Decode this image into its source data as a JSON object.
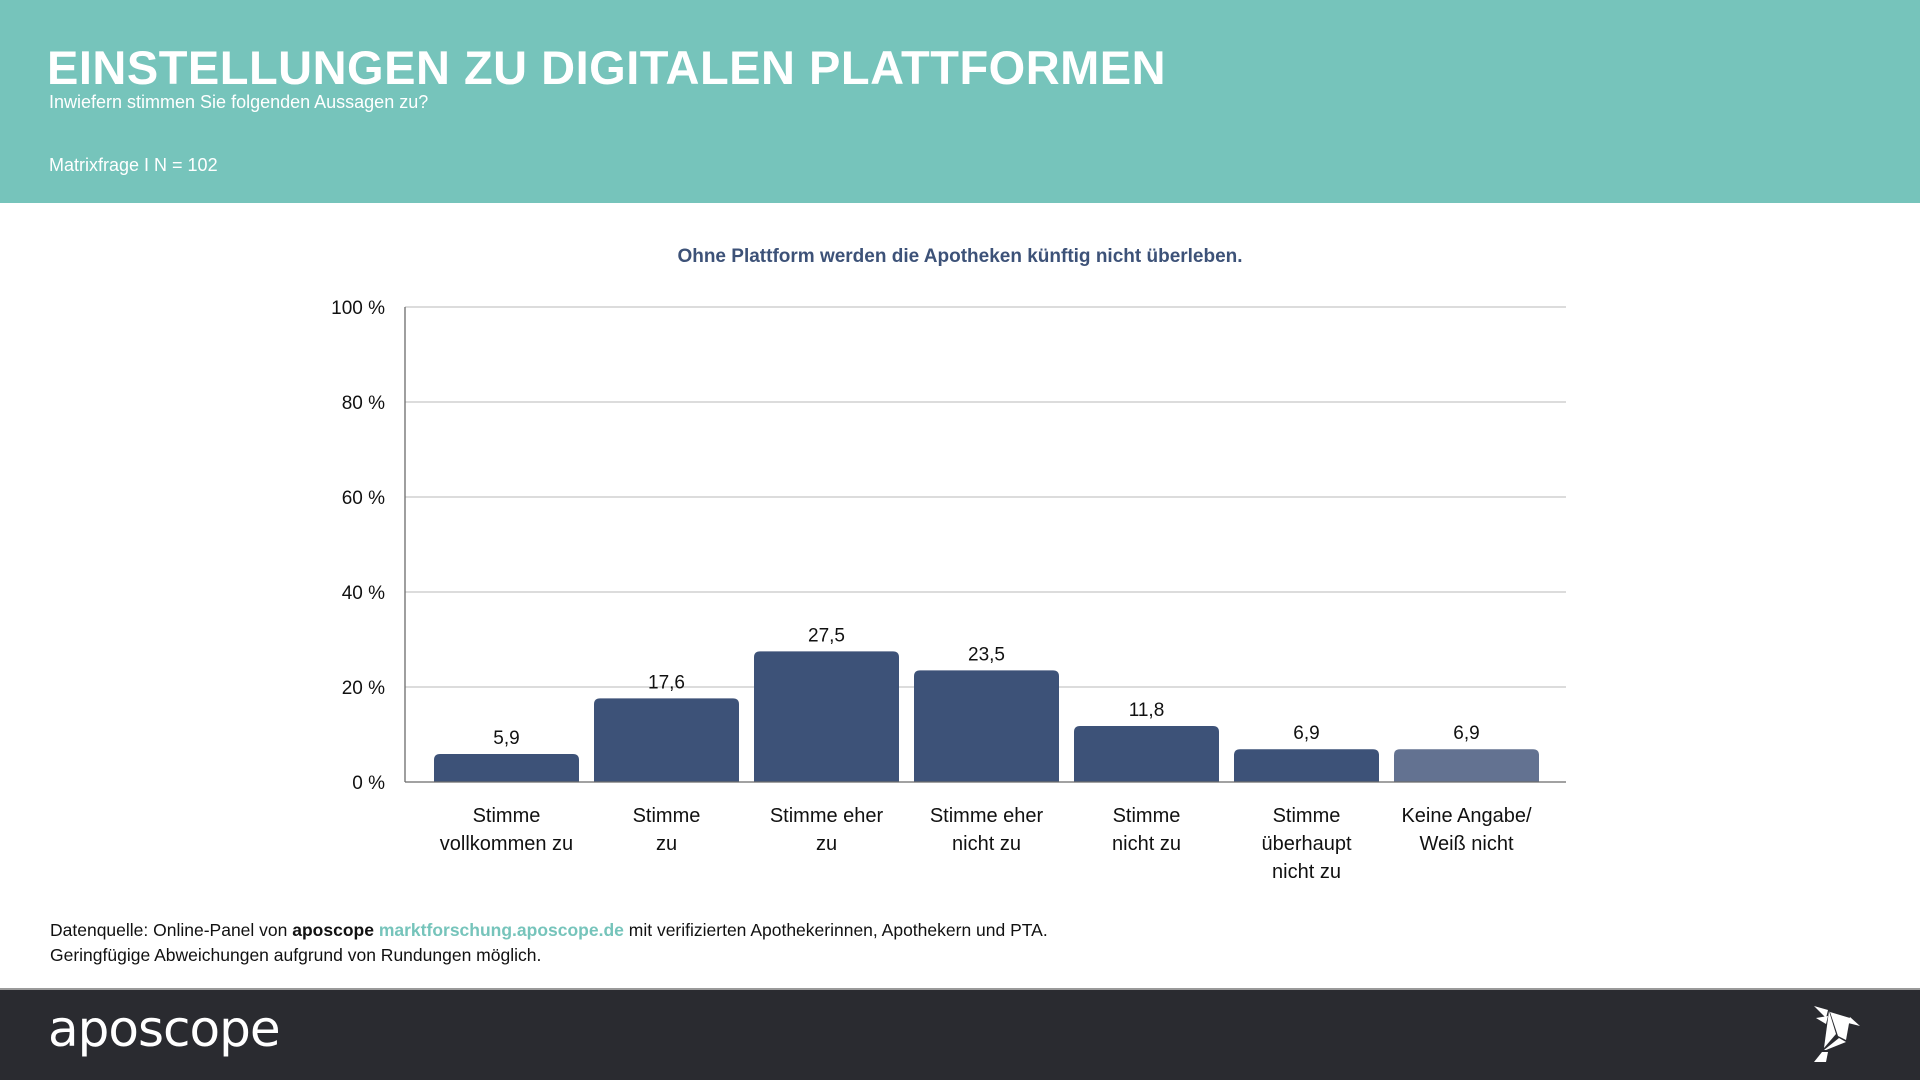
{
  "header": {
    "title": "EINSTELLUNGEN ZU DIGITALEN PLATTFORMEN",
    "subtitle": "Inwiefern stimmen Sie folgenden Aussagen zu?",
    "meta": "Matrixfrage I N = 102"
  },
  "colors": {
    "header_bg": "#76c4bb",
    "bar": "#3d5278",
    "bar_highlight": "#637291",
    "footer_bg": "#2a2b30",
    "chart_title": "#3d5278"
  },
  "chart_data": {
    "type": "bar",
    "title": "Ohne Plattform werden die Apotheken künftig nicht überleben.",
    "xlabel": "",
    "ylabel": "",
    "ylim": [
      0,
      100
    ],
    "grid": true,
    "yticks": [
      0,
      20,
      40,
      60,
      80,
      100
    ],
    "ytick_labels": [
      "0 %",
      "20 %",
      "40 %",
      "60 %",
      "80 %",
      "100 %"
    ],
    "categories": [
      [
        "Stimme",
        "vollkommen zu"
      ],
      [
        "Stimme",
        "zu"
      ],
      [
        "Stimme eher",
        "zu"
      ],
      [
        "Stimme eher",
        "nicht zu"
      ],
      [
        "Stimme",
        "nicht zu"
      ],
      [
        "Stimme",
        "überhaupt",
        "nicht zu"
      ],
      [
        "Keine Angabe/",
        "Weiß nicht"
      ]
    ],
    "values": [
      5.9,
      17.6,
      27.5,
      23.5,
      11.8,
      6.9,
      6.9
    ],
    "value_labels": [
      "5,9",
      "17,6",
      "27,5",
      "23,5",
      "11,8",
      "6,9",
      "6,9"
    ],
    "highlight_last": true
  },
  "source": {
    "prefix": "Datenquelle: Online-Panel von ",
    "brand": "aposcope",
    "link": "marktforschung.aposcope.de",
    "suffix": " mit verifizierten Apothekerinnen, Apothekern und PTA.",
    "note": "Geringfügige Abweichungen aufgrund von Rundungen möglich."
  },
  "footer": {
    "logo_text": "aposcope",
    "icon": "origami-bird-icon"
  }
}
